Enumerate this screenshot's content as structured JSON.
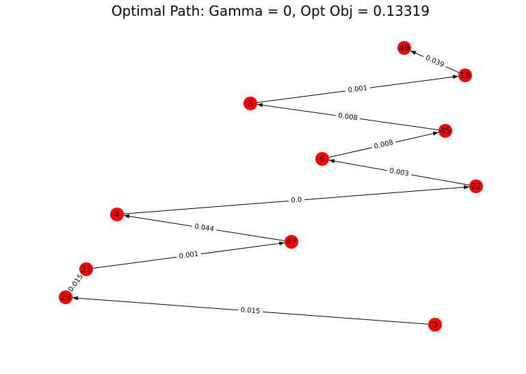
{
  "title": "Optimal Path: Gamma = 0, Opt Obj = 0.13319",
  "colors": {
    "node_fill": "#ff0000",
    "edge": "#000000",
    "label_text": "#000000",
    "edge_label_bg": "#ffffff"
  },
  "nodes": [
    {
      "id": "49",
      "label": "49"
    },
    {
      "id": "18",
      "label": "18"
    },
    {
      "id": "3",
      "label": "3"
    },
    {
      "id": "45",
      "label": "45"
    },
    {
      "id": "6",
      "label": "6"
    },
    {
      "id": "22",
      "label": "22"
    },
    {
      "id": "4",
      "label": "4"
    },
    {
      "id": "47",
      "label": "47"
    },
    {
      "id": "21",
      "label": "21"
    },
    {
      "id": "23",
      "label": "23"
    },
    {
      "id": "0",
      "label": "0"
    }
  ],
  "edges": [
    {
      "from": "0",
      "to": "23",
      "label": "0.015"
    },
    {
      "from": "23",
      "to": "21",
      "label": "0.015"
    },
    {
      "from": "21",
      "to": "47",
      "label": "0.001"
    },
    {
      "from": "47",
      "to": "4",
      "label": "0.044"
    },
    {
      "from": "4",
      "to": "22",
      "label": "0.0"
    },
    {
      "from": "22",
      "to": "6",
      "label": "0.003"
    },
    {
      "from": "6",
      "to": "45",
      "label": "0.008"
    },
    {
      "from": "45",
      "to": "3",
      "label": "0.008"
    },
    {
      "from": "3",
      "to": "18",
      "label": "0.001"
    },
    {
      "from": "18",
      "to": "49",
      "label": "0.039"
    }
  ]
}
